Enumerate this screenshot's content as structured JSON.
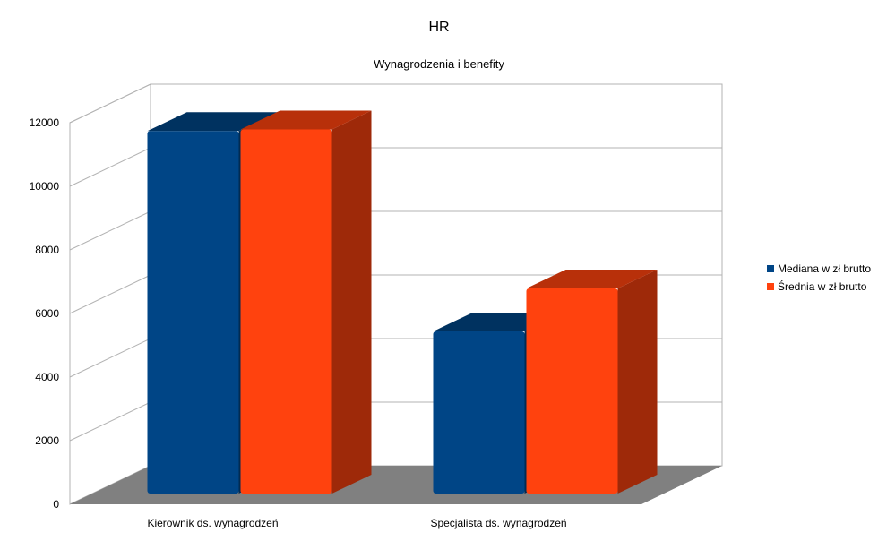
{
  "chart_data": {
    "type": "bar",
    "title": "HR",
    "subtitle": "Wynagrodzenia i benefity",
    "categories": [
      "Kierownik ds. wynagrodzeń",
      "Specjalista ds. wynagrodzeń"
    ],
    "series": [
      {
        "name": "Mediana w zł brutto",
        "values": [
          11400,
          5100
        ],
        "color": "#004586"
      },
      {
        "name": "Średnia w zł brutto",
        "values": [
          11450,
          6450
        ],
        "color": "#ff420e"
      }
    ],
    "ylim": [
      0,
      12000
    ],
    "yticks": [
      "0",
      "2000",
      "4000",
      "6000",
      "8000",
      "10000",
      "12000"
    ],
    "grid": true,
    "legend": "right",
    "style": "3d"
  }
}
